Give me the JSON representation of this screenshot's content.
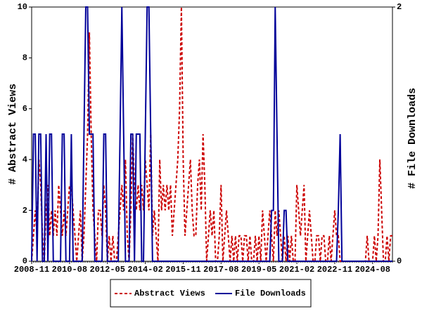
{
  "chart_data": {
    "type": "line",
    "categories": [
      "2008-11",
      null,
      null,
      null,
      null,
      null,
      null,
      null,
      null,
      null,
      null,
      null,
      null,
      null,
      null,
      null,
      null,
      null,
      null,
      null,
      null,
      "2010-08",
      null,
      null,
      null,
      null,
      null,
      null,
      null,
      null,
      null,
      null,
      null,
      null,
      null,
      null,
      null,
      null,
      null,
      null,
      null,
      null,
      "2012-05",
      null,
      null,
      null,
      null,
      null,
      null,
      null,
      null,
      null,
      null,
      null,
      null,
      null,
      null,
      null,
      null,
      null,
      null,
      null,
      null,
      "2014-02",
      null,
      null,
      null,
      null,
      null,
      null,
      null,
      null,
      null,
      null,
      null,
      null,
      null,
      null,
      null,
      null,
      null,
      null,
      null,
      null,
      "2015-11",
      null,
      null,
      null,
      null,
      null,
      null,
      null,
      null,
      null,
      null,
      null,
      null,
      null,
      null,
      null,
      null,
      null,
      null,
      null,
      null,
      "2017-08",
      null,
      null,
      null,
      null,
      null,
      null,
      null,
      null,
      null,
      null,
      null,
      null,
      null,
      null,
      null,
      null,
      null,
      null,
      null,
      null,
      "2019-05",
      null,
      null,
      null,
      null,
      null,
      null,
      null,
      null,
      null,
      null,
      null,
      null,
      null,
      null,
      null,
      null,
      null,
      null,
      null,
      null,
      "2021-02",
      null,
      null,
      null,
      null,
      null,
      null,
      null,
      null,
      null,
      null,
      null,
      null,
      null,
      null,
      null,
      null,
      null,
      null,
      null,
      null,
      "2022-11",
      null,
      null,
      null,
      null,
      null,
      null,
      null,
      null,
      null,
      null,
      null,
      null,
      null,
      null,
      null,
      null,
      null,
      null,
      null,
      null,
      "2024-08",
      null,
      null,
      null,
      null,
      null,
      null,
      null,
      null,
      null,
      null,
      null
    ],
    "series": [
      {
        "name": "Abstract Views",
        "color": "#cc0000",
        "line_style": "dashed",
        "axis": "y",
        "values": [
          0,
          1,
          2,
          1,
          4,
          3,
          1,
          0,
          2,
          3,
          1,
          2,
          1,
          2,
          1,
          3,
          2,
          1,
          2,
          1,
          2,
          3,
          3,
          2,
          1,
          0,
          1,
          2,
          0,
          1,
          3,
          5,
          9,
          5,
          2,
          1,
          0,
          2,
          2,
          1,
          3,
          2,
          0,
          1,
          0,
          1,
          0,
          0,
          1,
          2,
          3,
          2,
          4,
          1,
          0,
          2,
          5,
          3,
          2,
          3,
          2,
          3,
          2,
          4,
          3,
          2,
          5,
          1,
          2,
          1,
          0,
          4,
          2,
          3,
          2,
          3,
          2,
          3,
          1,
          2,
          3,
          4,
          6,
          10,
          4,
          1,
          2,
          3,
          4,
          2,
          1,
          1,
          3,
          4,
          2,
          5,
          3,
          0,
          1,
          2,
          1,
          2,
          0,
          0,
          1,
          3,
          0,
          1,
          2,
          1,
          0,
          1,
          0,
          1,
          0,
          1,
          1,
          0,
          1,
          1,
          0,
          1,
          0,
          0,
          1,
          0,
          1,
          0,
          2,
          1,
          0,
          1,
          2,
          1,
          0,
          2,
          1,
          2,
          1,
          0,
          1,
          0,
          1,
          0,
          1,
          0,
          0,
          3,
          2,
          1,
          2,
          3,
          0,
          1,
          2,
          1,
          0,
          0,
          1,
          1,
          0,
          1,
          1,
          0,
          0,
          1,
          0,
          1,
          2,
          1,
          1,
          0,
          0,
          0,
          0,
          0,
          0,
          0,
          0,
          0,
          0,
          0,
          0,
          0,
          0,
          0,
          1,
          0,
          0,
          0,
          1,
          0,
          1,
          4,
          2,
          0,
          0,
          1,
          0,
          1,
          1
        ]
      },
      {
        "name": "File Downloads",
        "color": "#000099",
        "line_style": "solid",
        "axis": "y2",
        "values": [
          0,
          1,
          1,
          0,
          1,
          1,
          0,
          0,
          1,
          0,
          1,
          1,
          0,
          0,
          0,
          0,
          0,
          1,
          1,
          0,
          0,
          0,
          1,
          0,
          0,
          0,
          0,
          0,
          0,
          1,
          2,
          2,
          1,
          1,
          1,
          0,
          0,
          0,
          0,
          0,
          1,
          1,
          0,
          0,
          0,
          0,
          0,
          0,
          0,
          1,
          2,
          1,
          0,
          0,
          0,
          1,
          1,
          0,
          1,
          1,
          1,
          0,
          0,
          1,
          2,
          2,
          1,
          0,
          0,
          0,
          0,
          0,
          0,
          0,
          0,
          0,
          0,
          0,
          0,
          0,
          0,
          0,
          0,
          0,
          0,
          0,
          0,
          0,
          0,
          0,
          0,
          0,
          0,
          0,
          0,
          0,
          0,
          0,
          0,
          0,
          0,
          0,
          0,
          0,
          0,
          0,
          0,
          0,
          0,
          0,
          0,
          0,
          0,
          0,
          0,
          0,
          0,
          0,
          0,
          0,
          0,
          0,
          0,
          0,
          0,
          0,
          0,
          0,
          0,
          0,
          0,
          0,
          0,
          0.4,
          0.4,
          2,
          1,
          0,
          0,
          0,
          0.4,
          0.4,
          0,
          0,
          0,
          0,
          0,
          0,
          0,
          0,
          0,
          0,
          0,
          0,
          0,
          0,
          0,
          0,
          0,
          0,
          0,
          0,
          0,
          0,
          0,
          0,
          0,
          0,
          0,
          0,
          0.4,
          1,
          0,
          0,
          0,
          0,
          0,
          0,
          0,
          0,
          0,
          0,
          0,
          0,
          0,
          0,
          0,
          0,
          0,
          0,
          0,
          0,
          0,
          0,
          0,
          0,
          0,
          0,
          0,
          0,
          0
        ]
      }
    ],
    "ylabel": "# Abstract Views",
    "y2label": "# File Downloads",
    "ylim": [
      0,
      10
    ],
    "yticks": [
      0,
      2,
      4,
      6,
      8,
      10
    ],
    "y2lim": [
      0,
      2
    ],
    "y2ticks": [
      0,
      2
    ],
    "grid": false,
    "legend": "bottom"
  }
}
